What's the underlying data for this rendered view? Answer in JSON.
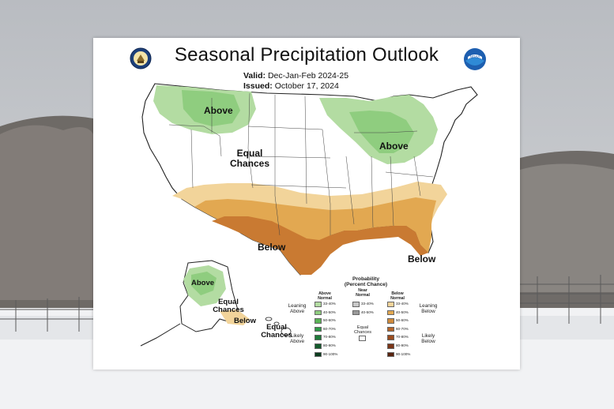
{
  "title": "Seasonal Precipitation Outlook",
  "valid_label": "Valid:",
  "valid_value": "Dec-Jan-Feb 2024-25",
  "issued_label": "Issued:",
  "issued_value": "October 17, 2024",
  "map_labels": {
    "above_nw": "Above",
    "above_gl": "Above",
    "equal_chances_1": "Equal",
    "equal_chances_2": "Chances",
    "below_south": "Below",
    "below_fl": "Below",
    "ak_above": "Above",
    "ak_equal_1": "Equal",
    "ak_equal_2": "Chances",
    "ak_below": "Below",
    "hi_equal_1": "Equal",
    "hi_equal_2": "Chances"
  },
  "legend": {
    "title_1": "Probability",
    "title_2": "(Percent Chance)",
    "col_above_1": "Above",
    "col_above_2": "Normal",
    "col_near_1": "Near",
    "col_near_2": "Normal",
    "col_below_1": "Below",
    "col_below_2": "Normal",
    "leaning_above_1": "Leaning",
    "leaning_above_2": "Above",
    "likely_above_1": "Likely",
    "likely_above_2": "Above",
    "leaning_below_1": "Leaning",
    "leaning_below_2": "Below",
    "likely_below_1": "Likely",
    "likely_below_2": "Below",
    "equal_1": "Equal",
    "equal_2": "Chances",
    "ranges": [
      "33-40%",
      "40-50%",
      "50-60%",
      "60-70%",
      "70-80%",
      "80-90%",
      "90-100%"
    ],
    "near_ranges": [
      "33-40%",
      "40-50%"
    ],
    "above_colors": [
      "#b3dca2",
      "#8fcd7f",
      "#5ab356",
      "#2f9a49",
      "#1f7a3a",
      "#145a2c",
      "#0c3d1e"
    ],
    "near_colors": [
      "#c8c8c8",
      "#9a9a9a"
    ],
    "below_colors": [
      "#f2d49a",
      "#e2a851",
      "#cf8a3c",
      "#b5652a",
      "#9a4c1f",
      "#7a3517",
      "#5a240f"
    ]
  },
  "logos": {
    "left": "doc-seal-icon",
    "right": "noaa-logo-icon",
    "noaa_text": "NOAA"
  }
}
